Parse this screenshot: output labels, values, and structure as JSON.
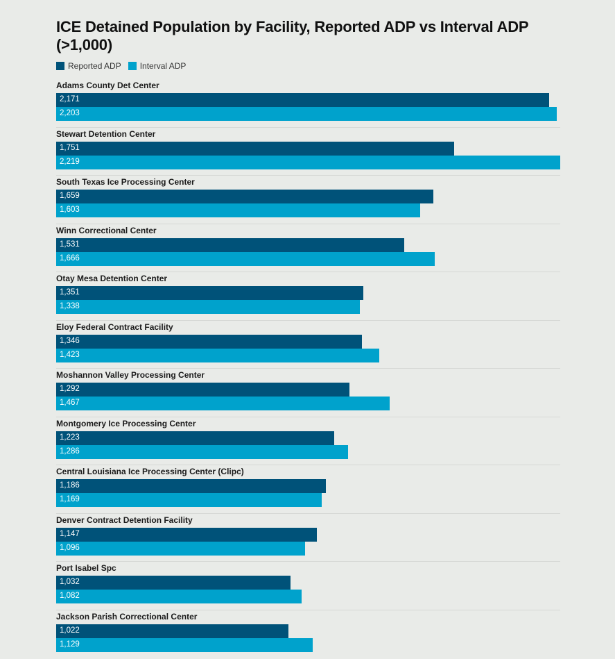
{
  "chart_data": {
    "type": "bar",
    "orientation": "horizontal",
    "title": "ICE Detained Population by Facility, Reported ADP vs Interval ADP (>1,000)",
    "xlabel": "",
    "ylabel": "",
    "xlim": [
      0,
      2219
    ],
    "grid": false,
    "legend_position": "top-left",
    "categories": [
      "Adams County Det Center",
      "Stewart Detention Center",
      "South Texas Ice Processing Center",
      "Winn Correctional Center",
      "Otay Mesa Detention Center",
      "Eloy Federal Contract Facility",
      "Moshannon Valley Processing Center",
      "Montgomery Ice Processing Center",
      "Central Louisiana Ice Processing Center (Clipc)",
      "Denver Contract Detention Facility",
      "Port Isabel Spc",
      "Jackson Parish Correctional Center"
    ],
    "series": [
      {
        "name": "Reported ADP",
        "color": "#005279",
        "values": [
          2171,
          1751,
          1659,
          1531,
          1351,
          1346,
          1292,
          1223,
          1186,
          1147,
          1032,
          1022
        ],
        "labels": [
          "2,171",
          "1,751",
          "1,659",
          "1,531",
          "1,351",
          "1,346",
          "1,292",
          "1,223",
          "1,186",
          "1,147",
          "1,032",
          "1,022"
        ]
      },
      {
        "name": "Interval ADP",
        "color": "#00a2cc",
        "values": [
          2203,
          2219,
          1603,
          1666,
          1338,
          1423,
          1467,
          1286,
          1169,
          1096,
          1082,
          1129
        ],
        "labels": [
          "2,203",
          "2,219",
          "1,603",
          "1,666",
          "1,338",
          "1,423",
          "1,467",
          "1,286",
          "1,169",
          "1,096",
          "1,082",
          "1,129"
        ]
      }
    ]
  }
}
